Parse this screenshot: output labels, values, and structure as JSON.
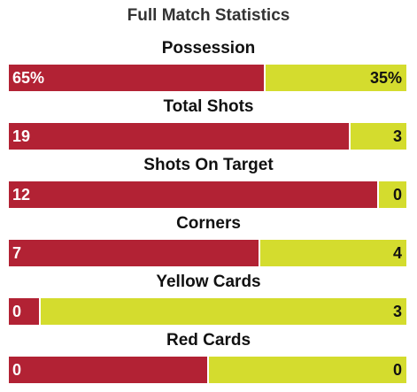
{
  "title": "Full Match Statistics",
  "colors": {
    "home": "#b22234",
    "away": "#d4dc2e"
  },
  "stats": [
    {
      "label": "Possession",
      "home": "65%",
      "away": "35%",
      "home_share": 0.645
    },
    {
      "label": "Total Shots",
      "home": "19",
      "away": "3",
      "home_share": 0.86
    },
    {
      "label": "Shots On Target",
      "home": "12",
      "away": "0",
      "home_share": 0.93
    },
    {
      "label": "Corners",
      "home": "7",
      "away": "4",
      "home_share": 0.63
    },
    {
      "label": "Yellow Cards",
      "home": "0",
      "away": "3",
      "home_share": 0.075
    },
    {
      "label": "Red Cards",
      "home": "0",
      "away": "0",
      "home_share": 0.5
    }
  ]
}
